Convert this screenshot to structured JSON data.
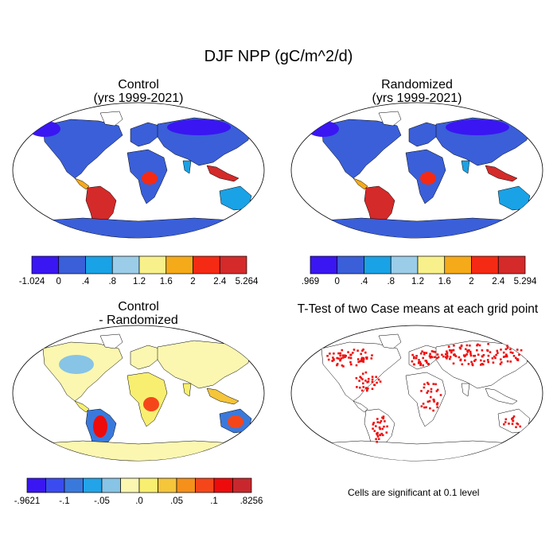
{
  "main_title": "DJF NPP (gC/m^2/d)",
  "panels": [
    {
      "id": "control",
      "title_line1": "Control",
      "title_line2": "(yrs 1999-2021)"
    },
    {
      "id": "randomized",
      "title_line1": "Randomized",
      "title_line2": "(yrs 1999-2021)"
    },
    {
      "id": "difference",
      "title_line1": "Control",
      "title_line2": "- Randomized"
    },
    {
      "id": "ttest",
      "title_line1": "T-Test of two Case means at each grid point",
      "title_line2": ""
    }
  ],
  "colorbars": [
    {
      "panel": "control",
      "colors": [
        "#3a16f2",
        "#3a5fd9",
        "#1aa2e6",
        "#9bcde8",
        "#f8f08a",
        "#f5aa1a",
        "#f52a14",
        "#d42a2a"
      ],
      "labels": [
        "-1.024",
        "0",
        ".4",
        ".8",
        "1.2",
        "1.6",
        "2",
        "2.4",
        "5.264"
      ]
    },
    {
      "panel": "randomized",
      "colors": [
        "#3a16f2",
        "#3a5fd9",
        "#1aa2e6",
        "#9bcde8",
        "#f8f08a",
        "#f5aa1a",
        "#f52a14",
        "#d42a2a"
      ],
      "labels": [
        ".969",
        "0",
        ".4",
        ".8",
        "1.2",
        "1.6",
        "2",
        "2.4",
        "5.294"
      ]
    },
    {
      "panel": "difference",
      "colors": [
        "#3a16f2",
        "#3a4cf0",
        "#3a79dc",
        "#23a4e8",
        "#87c4e6",
        "#fbf7b0",
        "#f8ef70",
        "#f5c53a",
        "#f5901a",
        "#f5461a",
        "#ee0b0b",
        "#c8282d"
      ],
      "labels": [
        "-.9621",
        "-.1",
        "-.05",
        ".0",
        ".05",
        ".1",
        ".8256"
      ]
    }
  ],
  "significance_note": "Cells are significant at 0.1 level",
  "significance_color": "#ee1111",
  "ocean_color": "#ffffff"
}
